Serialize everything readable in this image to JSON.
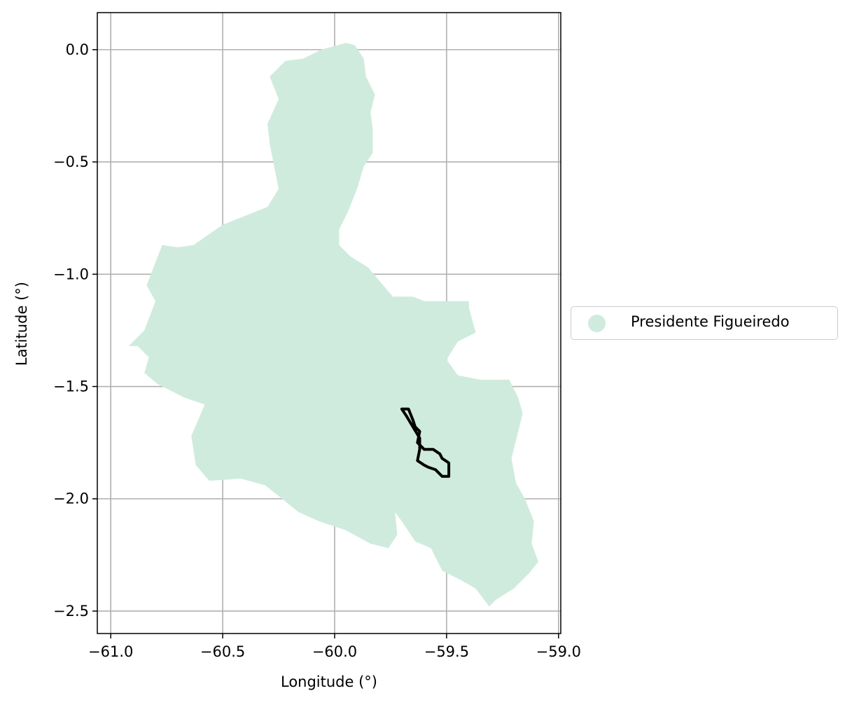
{
  "chart_data": {
    "type": "map",
    "xlabel": "Longitude (°)",
    "ylabel": "Latitude (°)",
    "xlim": [
      -61.06,
      -58.99
    ],
    "ylim": [
      -2.6,
      0.165
    ],
    "x_ticks": [
      -61.0,
      -60.5,
      -60.0,
      -59.5,
      -59.0
    ],
    "x_tick_labels": [
      "−61.0",
      "−60.5",
      "−60.0",
      "−59.5",
      "−59.0"
    ],
    "y_ticks": [
      0.0,
      -0.5,
      -1.0,
      -1.5,
      -2.0,
      -2.5
    ],
    "y_tick_labels": [
      "0.0",
      "−0.5",
      "−1.0",
      "−1.5",
      "−2.0",
      "−2.5"
    ],
    "grid": true,
    "legend_placement": "center-right outside",
    "legend": [
      {
        "label": "Presidente Figueiredo",
        "color": "#cfebdd"
      }
    ],
    "region": {
      "name": "Presidente Figueiredo",
      "fill": "#cfebdd",
      "outline": [
        [
          -59.95,
          0.03
        ],
        [
          -59.91,
          0.02
        ],
        [
          -59.87,
          -0.04
        ],
        [
          -59.86,
          -0.12
        ],
        [
          -59.82,
          -0.2
        ],
        [
          -59.84,
          -0.28
        ],
        [
          -59.83,
          -0.35
        ],
        [
          -59.83,
          -0.46
        ],
        [
          -59.87,
          -0.52
        ],
        [
          -59.9,
          -0.62
        ],
        [
          -59.94,
          -0.72
        ],
        [
          -59.98,
          -0.8
        ],
        [
          -59.98,
          -0.87
        ],
        [
          -59.93,
          -0.92
        ],
        [
          -59.85,
          -0.97
        ],
        [
          -59.8,
          -1.03
        ],
        [
          -59.74,
          -1.1
        ],
        [
          -59.65,
          -1.1
        ],
        [
          -59.6,
          -1.12
        ],
        [
          -59.5,
          -1.12
        ],
        [
          -59.4,
          -1.12
        ],
        [
          -59.4,
          -1.15
        ],
        [
          -59.37,
          -1.26
        ],
        [
          -59.45,
          -1.3
        ],
        [
          -59.5,
          -1.38
        ],
        [
          -59.45,
          -1.45
        ],
        [
          -59.35,
          -1.47
        ],
        [
          -59.22,
          -1.47
        ],
        [
          -59.18,
          -1.55
        ],
        [
          -59.16,
          -1.62
        ],
        [
          -59.18,
          -1.7
        ],
        [
          -59.21,
          -1.82
        ],
        [
          -59.19,
          -1.93
        ],
        [
          -59.15,
          -2.0
        ],
        [
          -59.11,
          -2.1
        ],
        [
          -59.12,
          -2.2
        ],
        [
          -59.09,
          -2.28
        ],
        [
          -59.13,
          -2.33
        ],
        [
          -59.2,
          -2.4
        ],
        [
          -59.28,
          -2.45
        ],
        [
          -59.31,
          -2.48
        ],
        [
          -59.37,
          -2.4
        ],
        [
          -59.44,
          -2.36
        ],
        [
          -59.52,
          -2.32
        ],
        [
          -59.57,
          -2.22
        ],
        [
          -59.64,
          -2.19
        ],
        [
          -59.7,
          -2.1
        ],
        [
          -59.73,
          -2.06
        ],
        [
          -59.72,
          -2.16
        ],
        [
          -59.76,
          -2.22
        ],
        [
          -59.84,
          -2.2
        ],
        [
          -59.95,
          -2.14
        ],
        [
          -60.07,
          -2.1
        ],
        [
          -60.16,
          -2.06
        ],
        [
          -60.26,
          -1.98
        ],
        [
          -60.31,
          -1.94
        ],
        [
          -60.42,
          -1.91
        ],
        [
          -60.56,
          -1.92
        ],
        [
          -60.62,
          -1.85
        ],
        [
          -60.64,
          -1.72
        ],
        [
          -60.58,
          -1.58
        ],
        [
          -60.67,
          -1.55
        ],
        [
          -60.79,
          -1.49
        ],
        [
          -60.85,
          -1.44
        ],
        [
          -60.83,
          -1.37
        ],
        [
          -60.88,
          -1.32
        ],
        [
          -60.92,
          -1.32
        ],
        [
          -60.85,
          -1.25
        ],
        [
          -60.8,
          -1.12
        ],
        [
          -60.84,
          -1.05
        ],
        [
          -60.77,
          -0.87
        ],
        [
          -60.7,
          -0.88
        ],
        [
          -60.63,
          -0.87
        ],
        [
          -60.5,
          -0.78
        ],
        [
          -60.4,
          -0.74
        ],
        [
          -60.3,
          -0.7
        ],
        [
          -60.25,
          -0.62
        ],
        [
          -60.27,
          -0.52
        ],
        [
          -60.29,
          -0.42
        ],
        [
          -60.3,
          -0.33
        ],
        [
          -60.25,
          -0.22
        ],
        [
          -60.29,
          -0.12
        ],
        [
          -60.22,
          -0.05
        ],
        [
          -60.14,
          -0.04
        ],
        [
          -60.06,
          0.0
        ]
      ]
    },
    "boundary_line": {
      "color": "#000000",
      "outline": [
        [
          -59.7,
          -1.6
        ],
        [
          -59.67,
          -1.6
        ],
        [
          -59.65,
          -1.65
        ],
        [
          -59.64,
          -1.68
        ],
        [
          -59.62,
          -1.7
        ],
        [
          -59.63,
          -1.75
        ],
        [
          -59.6,
          -1.78
        ],
        [
          -59.56,
          -1.78
        ],
        [
          -59.53,
          -1.8
        ],
        [
          -59.52,
          -1.82
        ],
        [
          -59.49,
          -1.84
        ],
        [
          -59.49,
          -1.9
        ],
        [
          -59.52,
          -1.9
        ],
        [
          -59.55,
          -1.87
        ],
        [
          -59.58,
          -1.86
        ],
        [
          -59.6,
          -1.85
        ],
        [
          -59.63,
          -1.83
        ],
        [
          -59.62,
          -1.78
        ],
        [
          -59.62,
          -1.73
        ],
        [
          -59.65,
          -1.68
        ],
        [
          -59.68,
          -1.63
        ],
        [
          -59.7,
          -1.6
        ]
      ]
    }
  }
}
